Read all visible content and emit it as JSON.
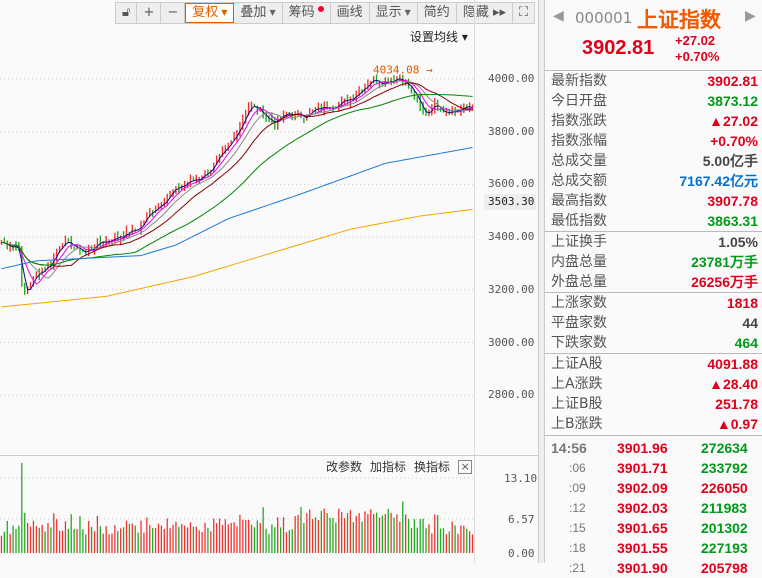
{
  "toolbar": {
    "items": [
      {
        "label": "复权",
        "caret": true,
        "active": true
      },
      {
        "label": "叠加",
        "caret": true
      },
      {
        "label": "筹码",
        "dot": true
      },
      {
        "label": "画线"
      },
      {
        "label": "显示",
        "caret": true
      },
      {
        "label": "简约"
      },
      {
        "label": "隐藏 ▸▸"
      }
    ],
    "ma_setting": "设置均线 ▾"
  },
  "chart_data": {
    "type": "candlestick",
    "y_ticks": [
      "4000.00",
      "3800.00",
      "3600.00",
      "3400.00",
      "3200.00",
      "3000.00",
      "2800.00"
    ],
    "y_tick_values": [
      4000,
      3800,
      3600,
      3400,
      3200,
      3000,
      2800
    ],
    "current_label": "3503.30",
    "high_annotation": "4034.08 →",
    "close_keypoints": [
      [
        0,
        3380
      ],
      [
        10,
        3360
      ],
      [
        12,
        3170
      ],
      [
        20,
        3260
      ],
      [
        28,
        3300
      ],
      [
        34,
        3380
      ],
      [
        40,
        3370
      ],
      [
        48,
        3340
      ],
      [
        56,
        3380
      ],
      [
        62,
        3390
      ],
      [
        70,
        3410
      ],
      [
        78,
        3430
      ],
      [
        86,
        3500
      ],
      [
        96,
        3560
      ],
      [
        104,
        3600
      ],
      [
        112,
        3620
      ],
      [
        120,
        3660
      ],
      [
        130,
        3740
      ],
      [
        142,
        3900
      ],
      [
        148,
        3880
      ],
      [
        156,
        3830
      ],
      [
        164,
        3870
      ],
      [
        172,
        3860
      ],
      [
        180,
        3880
      ],
      [
        188,
        3900
      ],
      [
        196,
        3910
      ],
      [
        204,
        3950
      ],
      [
        212,
        4000
      ],
      [
        220,
        3990
      ],
      [
        228,
        4010
      ],
      [
        236,
        3950
      ],
      [
        242,
        3860
      ],
      [
        248,
        3910
      ],
      [
        254,
        3880
      ],
      [
        262,
        3880
      ],
      [
        270,
        3900
      ]
    ],
    "ma_long_keypoints": {
      "blue": [
        [
          0,
          3280
        ],
        [
          20,
          3310
        ],
        [
          80,
          3330
        ],
        [
          100,
          3370
        ],
        [
          130,
          3470
        ],
        [
          170,
          3560
        ],
        [
          220,
          3680
        ],
        [
          270,
          3740
        ]
      ],
      "orange": [
        [
          0,
          3135
        ],
        [
          60,
          3175
        ],
        [
          110,
          3250
        ],
        [
          150,
          3330
        ],
        [
          200,
          3430
        ],
        [
          240,
          3480
        ],
        [
          270,
          3505
        ]
      ]
    },
    "volume_ticks": [
      "13.10",
      "6.57",
      "0.00"
    ],
    "volume_max": 13.1
  },
  "volume_panel": {
    "actions": [
      "改参数",
      "加指标",
      "换指标"
    ],
    "close": "×"
  },
  "quote": {
    "code": "000001",
    "name": "上证指数",
    "price": "3902.81",
    "change": "+27.02",
    "change_pct": "+0.70%"
  },
  "stats": [
    {
      "k": "最新指数",
      "v": "3902.81",
      "c": "red"
    },
    {
      "k": "今日开盘",
      "v": "3873.12",
      "c": "green"
    },
    {
      "k": "指数涨跌",
      "v": "▲27.02",
      "c": "red"
    },
    {
      "k": "指数涨幅",
      "v": "+0.70%",
      "c": "red"
    },
    {
      "k": "总成交量",
      "v": "5.00亿手",
      "c": "gray"
    },
    {
      "k": "总成交额",
      "v": "7167.42亿元",
      "c": "blue"
    },
    {
      "k": "最高指数",
      "v": "3907.78",
      "c": "red"
    },
    {
      "k": "最低指数",
      "v": "3863.31",
      "c": "green"
    },
    {
      "k": "上证换手",
      "v": "1.05%",
      "c": "gray"
    },
    {
      "k": "内盘总量",
      "v": "23781万手",
      "c": "green"
    },
    {
      "k": "外盘总量",
      "v": "26256万手",
      "c": "red"
    },
    {
      "k": "上涨家数",
      "v": "1818",
      "c": "red"
    },
    {
      "k": "平盘家数",
      "v": "44",
      "c": "gray"
    },
    {
      "k": "下跌家数",
      "v": "464",
      "c": "green"
    },
    {
      "k": "上证A股",
      "v": "4091.88",
      "c": "red"
    },
    {
      "k": "上A涨跌",
      "v": "▲28.40",
      "c": "red"
    },
    {
      "k": "上证B股",
      "v": "251.78",
      "c": "red"
    },
    {
      "k": "上B涨跌",
      "v": "▲0.97",
      "c": "red"
    }
  ],
  "ticks": [
    {
      "t": "14:56",
      "p": "3901.96",
      "v": "272634",
      "vc": "green"
    },
    {
      "t": ":06",
      "p": "3901.71",
      "v": "233792",
      "vc": "green"
    },
    {
      "t": ":09",
      "p": "3902.09",
      "v": "226050",
      "vc": "red"
    },
    {
      "t": ":12",
      "p": "3902.03",
      "v": "211983",
      "vc": "green"
    },
    {
      "t": ":15",
      "p": "3901.65",
      "v": "201302",
      "vc": "green"
    },
    {
      "t": ":18",
      "p": "3901.55",
      "v": "227193",
      "vc": "green"
    },
    {
      "t": ":21",
      "p": "3901.90",
      "v": "205798",
      "vc": "red"
    }
  ]
}
